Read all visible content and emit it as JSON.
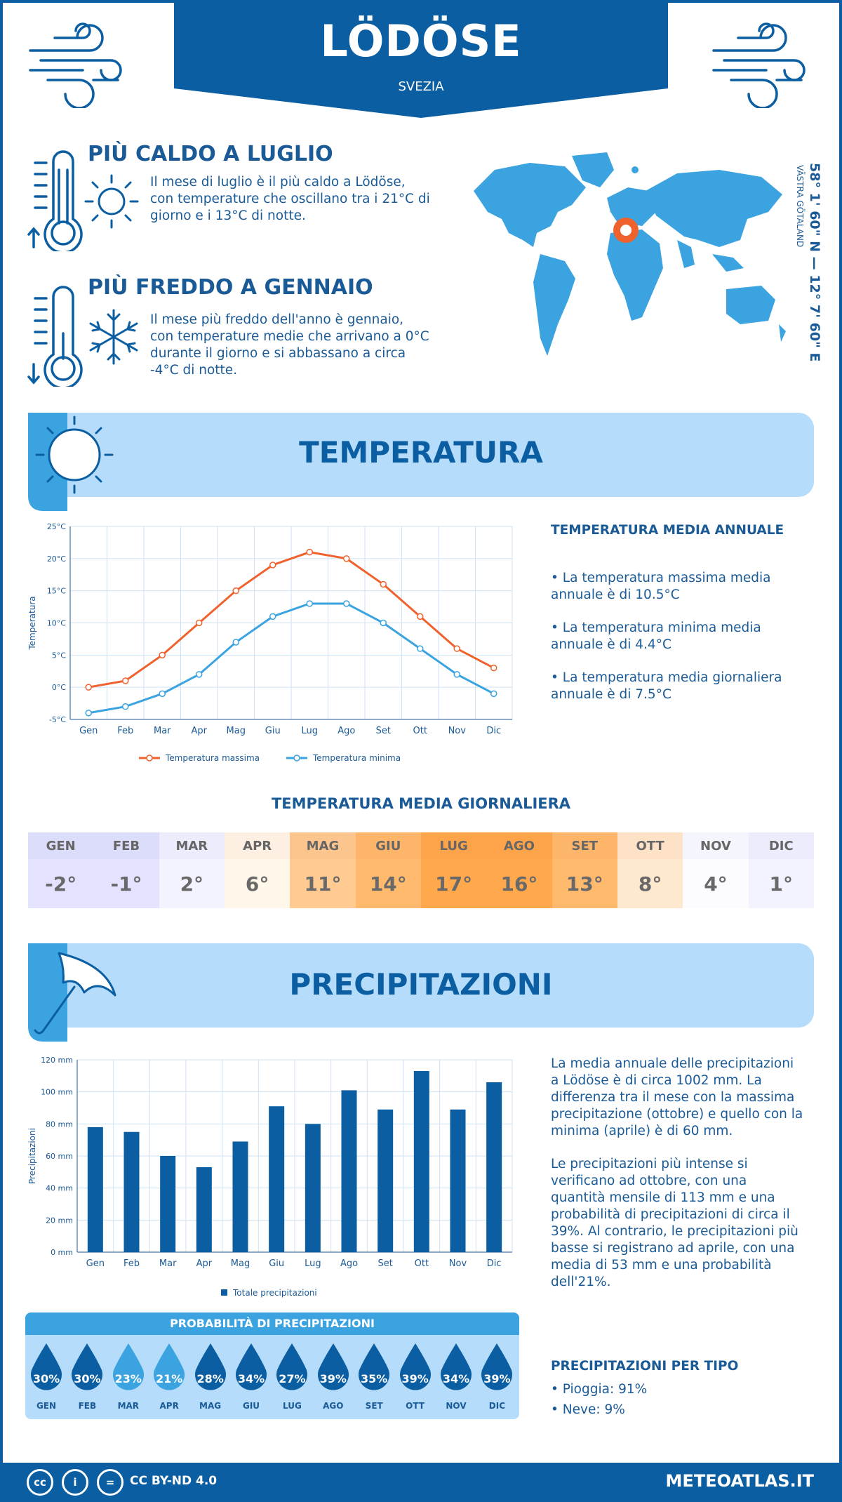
{
  "header": {
    "title": "LÖDÖSE",
    "country": "SVEZIA"
  },
  "coords": "58° 1' 60\" N — 12° 7' 60\" E",
  "region": "VÄSTRA GÖTALAND",
  "hot": {
    "title": "PIÙ CALDO A LUGLIO",
    "text": "Il mese di luglio è il più caldo a Lödöse, con temperature che oscillano tra i 21°C di giorno e i 13°C di notte."
  },
  "cold": {
    "title": "PIÙ FREDDO A GENNAIO",
    "text": "Il mese più freddo dell'anno è gennaio, con temperature medie che arrivano a 0°C durante il giorno e si abbassano a circa -4°C di notte."
  },
  "temp_section": {
    "title": "TEMPERATURA",
    "side_title": "TEMPERATURA MEDIA ANNUALE",
    "bullets": [
      "• La temperatura massima media annuale è di 10.5°C",
      "• La temperatura minima media annuale è di 4.4°C",
      "• La temperatura media giornaliera annuale è di 7.5°C"
    ]
  },
  "daily": {
    "title": "TEMPERATURA MEDIA GIORNALIERA",
    "months": [
      "GEN",
      "FEB",
      "MAR",
      "APR",
      "MAG",
      "GIU",
      "LUG",
      "AGO",
      "SET",
      "OTT",
      "NOV",
      "DIC"
    ],
    "values": [
      "-2°",
      "-1°",
      "2°",
      "6°",
      "11°",
      "14°",
      "17°",
      "16°",
      "13°",
      "8°",
      "4°",
      "1°"
    ],
    "head_colors": [
      "#dcdcfb",
      "#dcdcfb",
      "#ececfc",
      "#fdf0e3",
      "#fdc58e",
      "#fdb56a",
      "#fda34a",
      "#fda34a",
      "#fdb56a",
      "#fde2c8",
      "#f5f5fd",
      "#ececfc"
    ],
    "cell_colors": [
      "#dcdcfb",
      "#dcdcfb",
      "#ececfc",
      "#fdf0e3",
      "#fdc58e",
      "#fdb56a",
      "#fda34a",
      "#fda34a",
      "#fdb56a",
      "#fde2c8",
      "#f5f5fd",
      "#ececfc"
    ]
  },
  "precip_section": {
    "title": "PRECIPITAZIONI",
    "text1": "La media annuale delle precipitazioni a Lödöse è di circa 1002 mm. La differenza tra il mese con la massima precipitazione (ottobre) e quello con la minima (aprile) è di 60 mm.",
    "text2": "Le precipitazioni più intense si verificano ad ottobre, con una quantità mensile di 113 mm e una probabilità di precipitazioni di circa il 39%. Al contrario, le precipitazioni più basse si registrano ad aprile, con una media di 53 mm e una probabilità dell'21%.",
    "type_title": "PRECIPITAZIONI PER TIPO",
    "types": [
      "• Pioggia: 91%",
      "• Neve: 9%"
    ]
  },
  "probability": {
    "title": "PROBABILITÀ DI PRECIPITAZIONI",
    "months": [
      "GEN",
      "FEB",
      "MAR",
      "APR",
      "MAG",
      "GIU",
      "LUG",
      "AGO",
      "SET",
      "OTT",
      "NOV",
      "DIC"
    ],
    "values": [
      "30%",
      "30%",
      "23%",
      "21%",
      "28%",
      "34%",
      "27%",
      "39%",
      "35%",
      "39%",
      "34%",
      "39%"
    ],
    "drop_colors": [
      "#0a5ea1",
      "#0a5ea1",
      "#3aa3e0",
      "#3aa3e0",
      "#0a5ea1",
      "#0a5ea1",
      "#0a5ea1",
      "#0a5ea1",
      "#0a5ea1",
      "#0a5ea1",
      "#0a5ea1",
      "#0a5ea1"
    ]
  },
  "footer": {
    "license": "CC BY-ND 4.0",
    "site": "METEOATLAS.IT",
    "cc_icons": [
      "cc",
      "i",
      "="
    ]
  },
  "chart_data": [
    {
      "type": "line",
      "ylabel": "Temperatura",
      "categories": [
        "Gen",
        "Feb",
        "Mar",
        "Apr",
        "Mag",
        "Giu",
        "Lug",
        "Ago",
        "Set",
        "Ott",
        "Nov",
        "Dic"
      ],
      "yticks": [
        "-5°C",
        "0°C",
        "5°C",
        "10°C",
        "15°C",
        "20°C",
        "25°C"
      ],
      "ylim": [
        -5,
        25
      ],
      "series": [
        {
          "name": "Temperatura massima",
          "color": "#f0622d",
          "values": [
            0,
            1,
            5,
            10,
            15,
            19,
            21,
            20,
            16,
            11,
            6,
            3
          ]
        },
        {
          "name": "Temperatura minima",
          "color": "#3aa3e0",
          "values": [
            -4,
            -3,
            -1,
            2,
            7,
            11,
            13,
            13,
            10,
            6,
            2,
            -1
          ]
        }
      ],
      "grid": true,
      "legend": "bottom"
    },
    {
      "type": "bar",
      "ylabel": "Precipitazioni",
      "categories": [
        "Gen",
        "Feb",
        "Mar",
        "Apr",
        "Mag",
        "Giu",
        "Lug",
        "Ago",
        "Set",
        "Ott",
        "Nov",
        "Dic"
      ],
      "yticks": [
        "0 mm",
        "20 mm",
        "40 mm",
        "60 mm",
        "80 mm",
        "100 mm",
        "120 mm"
      ],
      "ylim": [
        0,
        120
      ],
      "series": [
        {
          "name": "Totale precipitazioni",
          "color": "#0a5ea1",
          "values": [
            78,
            75,
            60,
            53,
            69,
            91,
            80,
            101,
            89,
            113,
            89,
            106
          ]
        }
      ],
      "grid": true,
      "legend": "bottom"
    }
  ]
}
